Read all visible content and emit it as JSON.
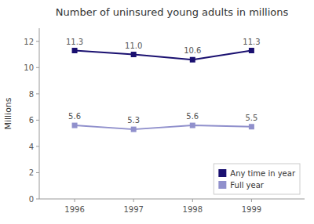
{
  "chart_data": {
    "type": "line",
    "title": "Number of uninsured young adults in millions",
    "y_label": "Millions",
    "x": [
      1996,
      1997,
      1998,
      1999
    ],
    "xlim": [
      1995.4,
      1999.9
    ],
    "xticks": [
      1996,
      1997,
      1998,
      1999
    ],
    "ylim": [
      0,
      13
    ],
    "yticks": [
      0,
      2,
      4,
      6,
      8,
      10,
      12
    ],
    "grid": false,
    "legend": "lower right",
    "data_labels": true,
    "series": [
      {
        "name": "Any time in year",
        "color": "#1a1070",
        "marker": "square",
        "values": [
          11.3,
          11.0,
          10.6,
          11.3
        ],
        "value_labels": [
          "11.3",
          "11.0",
          "10.6",
          "11.3"
        ]
      },
      {
        "name": "Full year",
        "color": "#9090cc",
        "marker": "square",
        "values": [
          5.6,
          5.3,
          5.6,
          5.5
        ],
        "value_labels": [
          "5.6",
          "5.3",
          "5.6",
          "5.5"
        ]
      }
    ]
  }
}
